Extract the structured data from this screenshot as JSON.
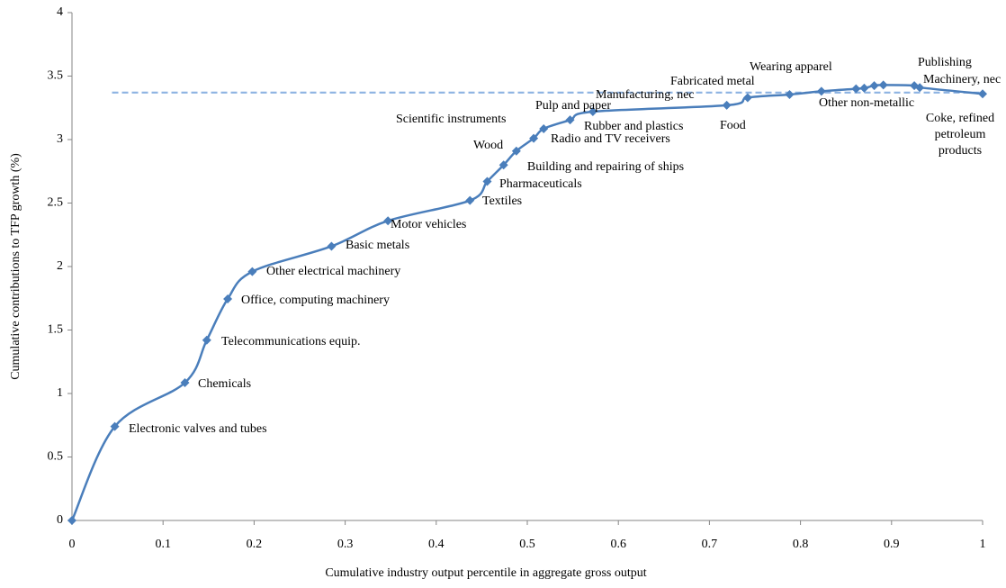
{
  "chart_data": {
    "type": "line",
    "x_label": "Cumulative industry output percentile in aggregate gross output",
    "y_label": "Cumulative contributions to TFP growth  (%)",
    "xlim": [
      0,
      1
    ],
    "xticks": [
      0,
      0.1,
      0.2,
      0.3,
      0.4,
      0.5,
      0.6,
      0.7,
      0.8,
      0.9,
      1
    ],
    "ylim": [
      0,
      4
    ],
    "yticks": [
      0,
      0.5,
      1,
      1.5,
      2,
      2.5,
      3,
      3.5,
      4
    ],
    "reference_line": {
      "value": 3.37,
      "from_x": 0.044,
      "color": "#8db3e2"
    },
    "series": [
      {
        "color": "#4a7ebb",
        "x": [
          0,
          0.047,
          0.124,
          0.148,
          0.171,
          0.198,
          0.285,
          0.347,
          0.437,
          0.456,
          0.474,
          0.488,
          0.507,
          0.518,
          0.547,
          0.572,
          0.719,
          0.742,
          0.788,
          0.823,
          0.861,
          0.87,
          0.881,
          0.891,
          0.925,
          0.931,
          1.0
        ],
        "values": [
          0,
          0.74,
          1.085,
          1.42,
          1.745,
          1.96,
          2.16,
          2.36,
          2.52,
          2.67,
          2.8,
          2.91,
          3.01,
          3.085,
          3.155,
          3.22,
          3.27,
          3.33,
          3.355,
          3.38,
          3.4,
          3.405,
          3.425,
          3.43,
          3.425,
          3.41,
          3.36
        ]
      }
    ],
    "annotations": [
      "Electronic valves and tubes",
      "Chemicals",
      "Telecommunications equip.",
      "Office, computing machinery",
      "Other electrical machinery",
      "Basic metals",
      "Motor vehicles",
      "Textiles",
      "Pharmaceuticals",
      "Building and repairing of ships",
      "Wood",
      "Radio and TV receivers",
      "Pulp and paper",
      "Scientific instruments",
      "Rubber and plastics",
      "Manufacturing, nec",
      "Food",
      "Fabricated metal",
      "Wearing apparel",
      "Other non-metallic",
      "Coke, refined petroleum products",
      "Publishing",
      "Machinery, nec"
    ]
  }
}
